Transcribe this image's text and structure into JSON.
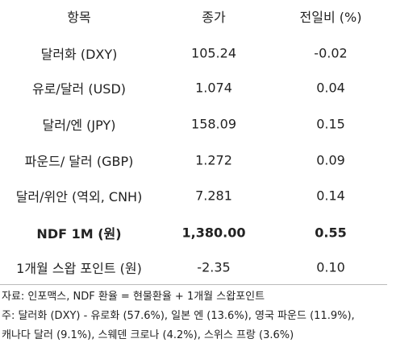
{
  "table": {
    "header": [
      "항목",
      "종가",
      "전일비 (%)"
    ],
    "rows": [
      [
        "달러화 (DXY)",
        "105.24",
        "-0.02"
      ],
      [
        "유로/달러 (USD)",
        "1.074",
        "0.04"
      ],
      [
        "달러/엔 (JPY)",
        "158.09",
        "0.15"
      ],
      [
        "파운드/ 달러 (GBP)",
        "1.272",
        "0.09"
      ],
      [
        "달러/위안 (역외, CNH)",
        "7.281",
        "0.14"
      ],
      [
        "NDF 1M (원)",
        "1,380.00",
        "0.55"
      ],
      [
        "1개월 스왑 포인트 (원)",
        "-2.35",
        "0.10"
      ]
    ],
    "bold_rows": [
      5
    ]
  },
  "notes": [
    "자료: 인포맥스, NDF 환율 = 현물환율 + 1개월 스왑포인트",
    "주: 달러화 (DXY) - 유로화 (57.6%), 일본 엔 (13.6%), 영국 파운드 (11.9%),",
    "캐나다 달러 (9.1%), 스웨덴 크로나 (4.2%), 스위스 프랑 (3.6%)"
  ]
}
